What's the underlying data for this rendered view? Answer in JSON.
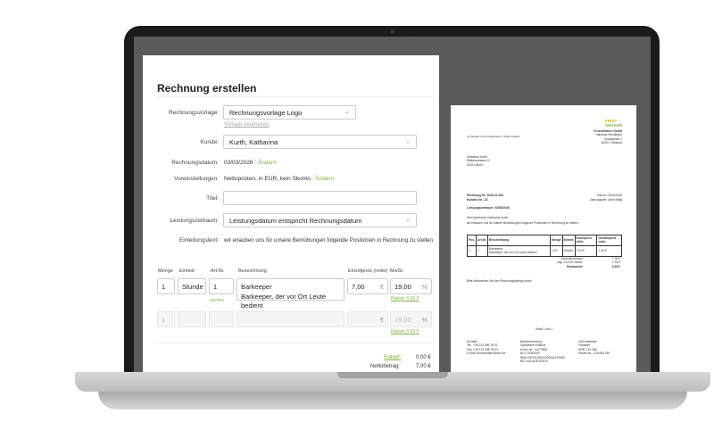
{
  "form": {
    "title": "Rechnung erstellen",
    "template_label": "Rechnungsvorlage:",
    "template_value": "Rechnungsvorlage Logo",
    "template_edit_link": "Vorlage bearbeiten",
    "customer_label": "Kunde:",
    "customer_value": "Kurth, Katharina",
    "date_label": "Rechnungsdatum:",
    "date_value": "03/03/2026",
    "change": "Ändern",
    "presets_label": "Voreinstellungen:",
    "presets_value": "Nettoposten, in EUR, kein Skonto",
    "title_label": "Titel:",
    "title_value": "",
    "period_label": "Leistungszeitraum:",
    "period_value": "Leistungsdatum entspricht Rechnungsdatum",
    "intro_label": "Einleitungstext:",
    "intro_value": "wir erlauben uns für unsere Bemühungen folgende Positionen in Rechnung zu stellen",
    "columns": [
      "Menge",
      "Einheit",
      "Art.Nr.",
      "Bezeichnung",
      "Einzelpreis (netto)",
      "MwSt."
    ],
    "item": {
      "qty": "1",
      "unit": "Stunde",
      "artno": "1",
      "search": "suchen",
      "name": "Barkeeper",
      "desc": "Barkeeper, der vor Ort Leute bedient",
      "price": "7,00",
      "currency": "€",
      "vat": "19,00",
      "percent": "%",
      "discount": "Rabatt: 0,00 €"
    },
    "empty_row": {
      "qty": "1",
      "currency": "€",
      "vat": "19,00",
      "percent": "%",
      "discount": "Rabatt: 0,00 €"
    },
    "totals": {
      "discount_label": "Rabatt:",
      "discount_value": "0,00 €",
      "net_label": "Nettobetrag:",
      "net_value": "7,00 €"
    }
  },
  "invoice": {
    "logo": [
      "FRUIT",
      "SHAKER"
    ],
    "sender_line": "Fruchtshaker GmbH | Mozartplatz 1 | 60321 Frankfurt",
    "company": [
      "Fruchtshaker GmbH",
      "Vanessa Sendlinger",
      "Mozartplatz 1",
      "60321 Frankfurt"
    ],
    "recipient": [
      "Katharina Kurth",
      "Waltersstrasse 11",
      "50321 Brühl"
    ],
    "number": "Rechnung Nr. 2026-03-183",
    "customer_no": "Kunden-Nr.: 22",
    "date": "Datum: 03/03/2026",
    "payment": "Zahlungsziel: sofort fällig",
    "period": "Leistungszeitraum: 03/03/2026",
    "greeting": "Sehr geehrte(r) Katharina Kurth,",
    "intro": "wir erlauben uns für unsere Bemühungen folgende Positionen in Rechnung zu stellen.",
    "headers": [
      "Pos.",
      "Art.Nr.",
      "Beschreibung",
      "Menge",
      "Einheit",
      "Einzelpreis netto",
      "Gesamtpreis netto"
    ],
    "row": [
      "1",
      "1",
      "Barkeeper",
      "Barkeeper, der vor Ort Leute bedient",
      "1,00",
      "Stunde",
      "7,00 €",
      "7,00 €"
    ],
    "subtotal_label": "Zwischensumme",
    "subtotal": "7,00 €",
    "vat_label": "zzgl. 19,00% MwSt.",
    "vat": "1,33 €",
    "total_label": "Endsumme",
    "total": "8,33 €",
    "closing": "Bitte überweisen Sie den Rechnungsbetrag sofort.",
    "pages": "Seite 1 von 1",
    "footer1": [
      "Kontakt:",
      "Tel.: +49 123 456 78 01",
      "Fax: +49 123 456 78 02",
      "E-Mail: fruchtshaker@web.de"
    ],
    "footer2": [
      "Bankverbindung:",
      "Sparkasse Rostock",
      "Konto-Nr.: 11470563",
      "BLZ 13050000",
      "IBAN DE20130500000011470563",
      "BIC NOLADE21ROS"
    ],
    "footer3": [
      "Gerichtsstand:",
      "Frankfurt",
      "HRB: 123 456",
      "Steuer-Nr.: 123/45/1230"
    ]
  },
  "colors": {
    "accent": "#7cb342",
    "screen_bg": "#5a5a5c"
  }
}
